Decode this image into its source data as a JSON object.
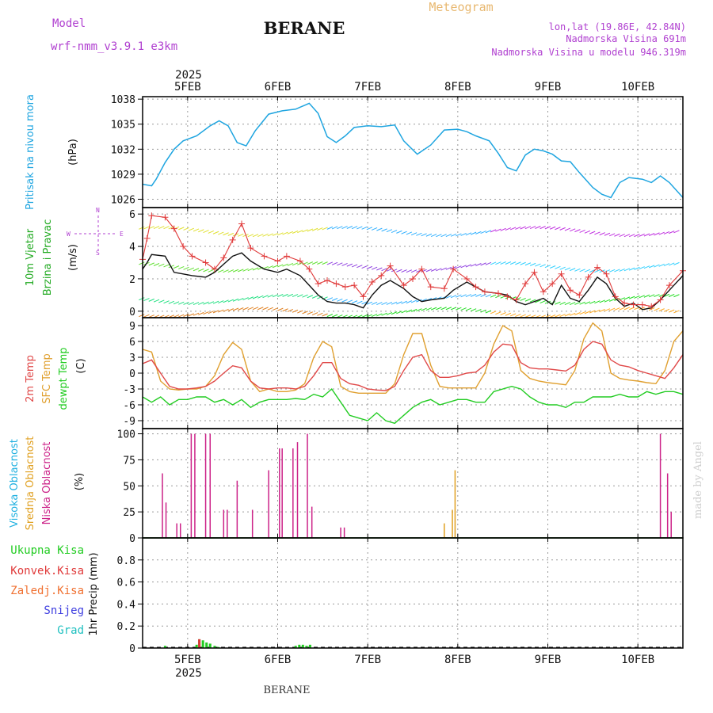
{
  "header": {
    "model_label": "Model",
    "model_name": "wrf-nmm_v3.9.1 e3km",
    "station": "BERANE",
    "product": "Meteogram",
    "lonlat": "lon,lat (19.86E, 42.84N)",
    "elevation": "Nadmorska Visina 691m",
    "model_elevation": "Nadmorska Visina u modelu 946.319m",
    "year_top": "2025",
    "year_bottom": "2025",
    "footer_station": "BERANE",
    "credit": "made by Angel"
  },
  "colors": {
    "pressure": "#1fa5e0",
    "wind_speed": "#111111",
    "gust": "#e03a3a",
    "t2m": "#e04848",
    "sfc": "#e0a030",
    "dew": "#22cc22",
    "cloud_high": "#1fb0e0",
    "cloud_mid": "#e0a020",
    "cloud_low": "#cc2288",
    "precip_total": "#22cc22",
    "precip_conv": "#e03a3a",
    "axes_label_purple": "#b040d0"
  },
  "chart_data": [
    {
      "type": "line",
      "id": "pressure",
      "ylabel": [
        "Pritisak na nivou mora",
        "(hPa)"
      ],
      "x_range": [
        4.5,
        10.5
      ],
      "ylim": [
        1025,
        1038.3
      ],
      "yticks": [
        "1026",
        "1029",
        "1032",
        "1035",
        "1038"
      ],
      "xticks": [
        "5FEB",
        "6FEB",
        "7FEB",
        "8FEB",
        "9FEB",
        "10FEB"
      ],
      "x": [
        4.5,
        4.6,
        4.65,
        4.75,
        4.85,
        4.95,
        5.1,
        5.25,
        5.35,
        5.45,
        5.55,
        5.65,
        5.75,
        5.9,
        6.05,
        6.2,
        6.35,
        6.45,
        6.55,
        6.65,
        6.75,
        6.85,
        7.0,
        7.15,
        7.3,
        7.4,
        7.55,
        7.7,
        7.85,
        8.0,
        8.1,
        8.2,
        8.35,
        8.45,
        8.55,
        8.65,
        8.75,
        8.85,
        8.95,
        9.05,
        9.15,
        9.25,
        9.35,
        9.5,
        9.6,
        9.7,
        9.8,
        9.9,
        10.05,
        10.15,
        10.25,
        10.35,
        10.5
      ],
      "series": [
        {
          "name": "MSLP",
          "values": [
            1027.8,
            1027.6,
            1028.4,
            1030.4,
            1032.0,
            1033.0,
            1033.6,
            1034.8,
            1035.4,
            1034.8,
            1032.8,
            1032.4,
            1034.2,
            1036.2,
            1036.6,
            1036.8,
            1037.5,
            1036.3,
            1033.5,
            1032.8,
            1033.6,
            1034.6,
            1034.8,
            1034.7,
            1034.9,
            1033.0,
            1031.4,
            1032.5,
            1034.3,
            1034.4,
            1034.1,
            1033.6,
            1033.0,
            1031.5,
            1029.8,
            1029.4,
            1031.3,
            1032.0,
            1031.8,
            1031.4,
            1030.6,
            1030.5,
            1029.2,
            1027.4,
            1026.6,
            1026.2,
            1028.0,
            1028.6,
            1028.4,
            1028.0,
            1028.8,
            1028.0,
            1026.2
          ]
        }
      ]
    },
    {
      "type": "line",
      "id": "wind",
      "ylabel": [
        "10m Vjetar",
        "Brzina i Pravac",
        "(m/s)"
      ],
      "direction_legend": [
        "W",
        "E",
        "N",
        "S"
      ],
      "x_range": [
        4.5,
        10.5
      ],
      "ylim": [
        -0.4,
        6.4
      ],
      "yticks": [
        "0",
        "2",
        "4",
        "6"
      ],
      "xticks": [
        "5FEB",
        "6FEB",
        "7FEB",
        "8FEB",
        "9FEB",
        "10FEB"
      ],
      "x": [
        4.5,
        4.55,
        4.6,
        4.75,
        4.85,
        4.95,
        5.05,
        5.2,
        5.3,
        5.4,
        5.5,
        5.6,
        5.7,
        5.85,
        6.0,
        6.1,
        6.25,
        6.35,
        6.45,
        6.55,
        6.65,
        6.75,
        6.85,
        6.95,
        7.05,
        7.15,
        7.25,
        7.4,
        7.5,
        7.6,
        7.7,
        7.85,
        7.95,
        8.1,
        8.2,
        8.3,
        8.45,
        8.55,
        8.65,
        8.75,
        8.85,
        8.95,
        9.05,
        9.15,
        9.25,
        9.35,
        9.45,
        9.55,
        9.65,
        9.75,
        9.85,
        9.95,
        10.05,
        10.15,
        10.25,
        10.35,
        10.5
      ],
      "series": [
        {
          "name": "speed",
          "values": [
            2.6,
            3.0,
            3.5,
            3.4,
            2.4,
            2.3,
            2.2,
            2.1,
            2.4,
            2.9,
            3.4,
            3.6,
            3.1,
            2.6,
            2.4,
            2.6,
            2.2,
            1.6,
            1.0,
            0.6,
            0.5,
            0.5,
            0.4,
            0.2,
            1.0,
            1.6,
            1.9,
            1.4,
            0.9,
            0.6,
            0.7,
            0.8,
            1.3,
            1.8,
            1.5,
            1.2,
            1.1,
            1.0,
            0.6,
            0.4,
            0.6,
            0.8,
            0.4,
            1.6,
            0.8,
            0.6,
            1.3,
            2.1,
            1.7,
            0.8,
            0.3,
            0.5,
            0.1,
            0.2,
            0.7,
            1.3,
            2.2
          ]
        },
        {
          "name": "gust",
          "values": [
            3.2,
            4.5,
            5.9,
            5.8,
            5.1,
            4.0,
            3.4,
            3.0,
            2.6,
            3.3,
            4.4,
            5.4,
            3.9,
            3.4,
            3.1,
            3.4,
            3.1,
            2.6,
            1.7,
            1.9,
            1.7,
            1.5,
            1.6,
            0.9,
            1.8,
            2.2,
            2.8,
            1.6,
            2.0,
            2.6,
            1.5,
            1.4,
            2.6,
            2.0,
            1.5,
            1.2,
            1.1,
            0.9,
            0.7,
            1.7,
            2.4,
            1.2,
            1.7,
            2.3,
            1.3,
            1.0,
            2.1,
            2.7,
            2.3,
            0.9,
            0.5,
            0.4,
            0.4,
            0.3,
            0.7,
            1.6,
            2.5
          ]
        }
      ]
    },
    {
      "type": "line",
      "id": "temperature",
      "ylabel": [
        "2m Temp",
        "SFC Temp",
        "dewpt Temp",
        "(C)"
      ],
      "x_range": [
        4.5,
        10.5
      ],
      "ylim": [
        -10.5,
        10.5
      ],
      "yticks": [
        "-9",
        "-6",
        "-3",
        "0",
        "3",
        "6",
        "9"
      ],
      "xticks": [
        "5FEB",
        "6FEB",
        "7FEB",
        "8FEB",
        "9FEB",
        "10FEB"
      ],
      "x": [
        4.5,
        4.6,
        4.7,
        4.8,
        4.9,
        5.0,
        5.1,
        5.2,
        5.3,
        5.4,
        5.5,
        5.6,
        5.7,
        5.8,
        5.9,
        6.0,
        6.1,
        6.2,
        6.3,
        6.4,
        6.5,
        6.6,
        6.7,
        6.8,
        6.9,
        7.0,
        7.1,
        7.2,
        7.3,
        7.4,
        7.5,
        7.6,
        7.7,
        7.8,
        7.9,
        8.0,
        8.1,
        8.2,
        8.3,
        8.4,
        8.5,
        8.6,
        8.7,
        8.8,
        8.9,
        9.0,
        9.1,
        9.2,
        9.3,
        9.4,
        9.5,
        9.6,
        9.7,
        9.8,
        9.9,
        10.0,
        10.1,
        10.2,
        10.3,
        10.4,
        10.5
      ],
      "series": [
        {
          "name": "2m Temp",
          "values": [
            1.8,
            2.5,
            0.0,
            -2.5,
            -3.0,
            -3.0,
            -2.8,
            -2.5,
            -1.5,
            0.0,
            1.4,
            1.0,
            -1.5,
            -2.8,
            -3.0,
            -2.8,
            -2.8,
            -3.0,
            -2.5,
            -0.5,
            2.0,
            2.0,
            -1.0,
            -2.0,
            -2.3,
            -3.0,
            -3.2,
            -3.3,
            -2.5,
            0.5,
            3.0,
            3.5,
            0.5,
            -0.8,
            -0.8,
            -0.5,
            0.0,
            0.2,
            1.5,
            4.0,
            5.5,
            5.3,
            2.0,
            1.0,
            0.8,
            0.8,
            0.6,
            0.4,
            1.5,
            4.5,
            6.0,
            5.5,
            2.5,
            1.5,
            1.2,
            0.5,
            0.0,
            -0.5,
            -1.0,
            1.0,
            3.5
          ]
        },
        {
          "name": "SFC Temp",
          "values": [
            4.5,
            4.0,
            -1.5,
            -3.0,
            -3.2,
            -3.0,
            -3.0,
            -2.5,
            -0.5,
            3.5,
            5.8,
            4.5,
            -1.5,
            -3.5,
            -3.0,
            -3.5,
            -3.5,
            -3.2,
            -2.0,
            3.0,
            6.0,
            5.0,
            -2.5,
            -3.5,
            -3.8,
            -3.8,
            -3.8,
            -3.8,
            -2.0,
            3.5,
            7.5,
            7.5,
            1.5,
            -2.5,
            -2.8,
            -2.8,
            -2.8,
            -2.8,
            0.0,
            5.5,
            9.0,
            8.0,
            0.5,
            -1.0,
            -1.5,
            -1.8,
            -2.0,
            -2.2,
            0.5,
            6.5,
            9.5,
            8.0,
            0.0,
            -1.0,
            -1.3,
            -1.5,
            -1.8,
            -2.0,
            0.5,
            6.0,
            8.0
          ]
        },
        {
          "name": "dewpt Temp",
          "values": [
            -4.5,
            -5.5,
            -4.5,
            -6.0,
            -5.0,
            -5.0,
            -4.5,
            -4.5,
            -5.5,
            -5.0,
            -6.0,
            -5.0,
            -6.5,
            -5.5,
            -5.0,
            -5.0,
            -5.0,
            -4.8,
            -5.0,
            -4.0,
            -4.5,
            -3.0,
            -5.5,
            -8.0,
            -8.5,
            -9.0,
            -7.5,
            -9.0,
            -9.5,
            -8.0,
            -6.5,
            -5.5,
            -5.0,
            -6.0,
            -5.5,
            -5.0,
            -5.0,
            -5.5,
            -5.5,
            -3.5,
            -3.0,
            -2.5,
            -3.0,
            -4.5,
            -5.5,
            -6.0,
            -6.0,
            -6.5,
            -5.5,
            -5.5,
            -4.5,
            -4.5,
            -4.5,
            -4.0,
            -4.5,
            -4.5,
            -3.5,
            -4.0,
            -3.5,
            -3.5,
            -4.0
          ]
        }
      ]
    },
    {
      "type": "bar",
      "id": "clouds",
      "ylabel": [
        "Visoka Oblacnost",
        "Srednja Oblacnost",
        "Niska Oblacnost",
        "(%)"
      ],
      "x_range": [
        4.5,
        10.5
      ],
      "ylim": [
        0,
        105
      ],
      "yticks": [
        "0",
        "25",
        "50",
        "75",
        "100"
      ],
      "xticks": [
        "5FEB",
        "6FEB",
        "7FEB",
        "8FEB",
        "9FEB",
        "10FEB"
      ],
      "series": [
        {
          "name": "Niska Oblacnost",
          "x": [
            4.72,
            4.76,
            4.88,
            4.92,
            5.04,
            5.08,
            5.2,
            5.25,
            5.4,
            5.44,
            5.55,
            5.72,
            5.9,
            6.02,
            6.05,
            6.17,
            6.22,
            6.33,
            6.38,
            6.7,
            6.74,
            10.25,
            10.33,
            10.37
          ],
          "values": [
            62,
            34,
            14,
            14,
            100,
            100,
            100,
            100,
            27,
            27,
            55,
            27,
            65,
            86,
            86,
            86,
            92,
            100,
            30,
            10,
            10,
            100,
            62,
            25
          ]
        },
        {
          "name": "Srednja Oblacnost",
          "x": [
            7.85,
            7.94,
            7.97
          ],
          "values": [
            14,
            27,
            65
          ]
        }
      ]
    },
    {
      "type": "bar",
      "id": "precip",
      "ylabel": [
        "1hr Precip (mm)"
      ],
      "legend": [
        "Ukupna Kisa",
        "Konvek.Kisa",
        "Zaledj.Kisa",
        "Snijeg",
        "Grad"
      ],
      "x_range": [
        4.5,
        10.5
      ],
      "ylim": [
        0,
        1.0
      ],
      "yticks": [
        "0",
        "0.2",
        "0.4",
        "0.6",
        "0.8"
      ],
      "xticks": [
        "5FEB",
        "6FEB",
        "7FEB",
        "8FEB",
        "9FEB",
        "10FEB"
      ],
      "series": [
        {
          "name": "Ukupna Kisa",
          "x": [
            4.75,
            5.1,
            5.13,
            5.17,
            5.21,
            5.25,
            5.3,
            5.34,
            6.2,
            6.24,
            6.28,
            6.32,
            6.36
          ],
          "values": [
            0.02,
            0.03,
            0.08,
            0.07,
            0.05,
            0.04,
            0.02,
            0.01,
            0.02,
            0.03,
            0.03,
            0.02,
            0.03
          ]
        },
        {
          "name": "Konvek.Kisa",
          "x": [
            5.13
          ],
          "values": [
            0.08
          ]
        }
      ]
    }
  ]
}
